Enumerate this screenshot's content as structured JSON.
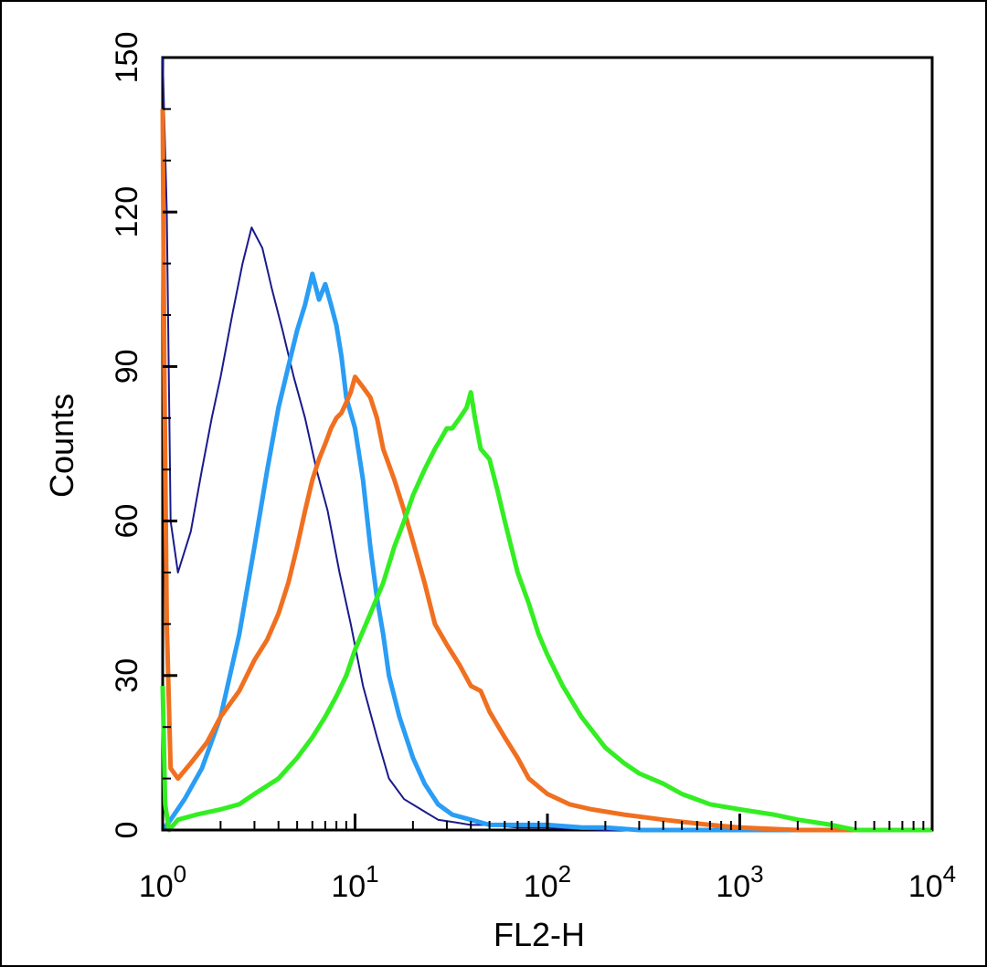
{
  "chart_data": {
    "type": "line",
    "title": "",
    "xlabel": "FL2-H",
    "ylabel": "Counts",
    "xscale": "log",
    "xlim": [
      1,
      10000
    ],
    "ylim": [
      0,
      150
    ],
    "grid": false,
    "legend": "none",
    "x_ticks": [
      {
        "value": 1,
        "base": "10",
        "exp": "0"
      },
      {
        "value": 10,
        "base": "10",
        "exp": "1"
      },
      {
        "value": 100,
        "base": "10",
        "exp": "2"
      },
      {
        "value": 1000,
        "base": "10",
        "exp": "3"
      },
      {
        "value": 10000,
        "base": "10",
        "exp": "4"
      }
    ],
    "y_ticks": [
      "0",
      "30",
      "60",
      "90",
      "120",
      "150"
    ],
    "series": [
      {
        "color": "#1a1a8c",
        "stroke": "thin",
        "x": [
          1,
          1.05,
          1.1,
          1.2,
          1.4,
          1.6,
          1.8,
          2,
          2.3,
          2.6,
          2.9,
          3.3,
          3.7,
          4.2,
          4.8,
          5.5,
          6.3,
          7.2,
          8.3,
          9.5,
          11,
          13,
          15,
          18,
          22,
          27,
          33,
          40,
          50,
          70,
          100,
          200,
          500,
          1000,
          10000
        ],
        "y": [
          150,
          120,
          60,
          50,
          58,
          70,
          80,
          88,
          100,
          110,
          117,
          113,
          105,
          97,
          88,
          80,
          70,
          62,
          50,
          40,
          28,
          18,
          10,
          6,
          4,
          2,
          1.5,
          1,
          1,
          0.5,
          0.5,
          0,
          0,
          0,
          0
        ]
      },
      {
        "color": "#2a9df4",
        "stroke": "thick",
        "x": [
          1,
          1.1,
          1.3,
          1.6,
          2,
          2.5,
          3,
          3.5,
          4,
          4.5,
          5,
          5.5,
          6,
          6.5,
          7,
          7.5,
          8,
          8.5,
          9,
          10,
          11,
          12,
          13,
          14,
          15,
          17,
          20,
          23,
          27,
          32,
          40,
          50,
          70,
          100,
          150,
          200,
          300,
          10000
        ],
        "y": [
          0,
          2,
          6,
          12,
          22,
          38,
          55,
          70,
          82,
          90,
          97,
          102,
          108,
          103,
          106,
          102,
          98,
          92,
          84,
          78,
          68,
          55,
          45,
          38,
          30,
          22,
          14,
          9,
          5,
          3,
          2,
          1,
          1,
          1,
          0.5,
          0.5,
          0,
          0
        ]
      },
      {
        "color": "#f07020",
        "stroke": "thick",
        "x": [
          1,
          1.02,
          1.05,
          1.1,
          1.2,
          1.4,
          1.7,
          2,
          2.5,
          3,
          3.5,
          4,
          4.5,
          5,
          5.5,
          6,
          6.5,
          7,
          7.5,
          8,
          8.5,
          9,
          9.5,
          10,
          11,
          12,
          13,
          14,
          16,
          18,
          20,
          23,
          26,
          30,
          35,
          40,
          45,
          50,
          60,
          70,
          80,
          100,
          130,
          170,
          250,
          400,
          700,
          1000,
          2000,
          10000
        ],
        "y": [
          140,
          90,
          40,
          12,
          10,
          13,
          17,
          22,
          27,
          33,
          37,
          42,
          48,
          55,
          62,
          68,
          72,
          75,
          78,
          80,
          81,
          83,
          85,
          88,
          86,
          84,
          80,
          74,
          68,
          62,
          56,
          48,
          40,
          36,
          32,
          28,
          27,
          23,
          18,
          14,
          10,
          7,
          5,
          4,
          3,
          2,
          1,
          0.5,
          0,
          0
        ]
      },
      {
        "color": "#33ee22",
        "stroke": "thick",
        "x": [
          1,
          1.03,
          1.08,
          1.2,
          1.5,
          2,
          2.5,
          3,
          4,
          5,
          6,
          7,
          8,
          9,
          10,
          12,
          14,
          16,
          18,
          20,
          23,
          26,
          28,
          30,
          32,
          35,
          38,
          40,
          42,
          45,
          50,
          55,
          60,
          70,
          80,
          90,
          100,
          120,
          150,
          200,
          250,
          300,
          400,
          500,
          700,
          1000,
          1500,
          2000,
          3000,
          4000,
          10000
        ],
        "y": [
          28,
          5,
          0,
          2,
          3,
          4,
          5,
          7,
          10,
          14,
          18,
          22,
          26,
          30,
          35,
          42,
          48,
          55,
          60,
          65,
          70,
          74,
          76,
          78,
          78,
          80,
          82,
          85,
          80,
          74,
          72,
          66,
          60,
          50,
          44,
          38,
          34,
          28,
          22,
          16,
          13,
          11,
          9,
          7,
          5,
          4,
          3,
          2,
          1,
          0,
          0
        ]
      }
    ]
  }
}
